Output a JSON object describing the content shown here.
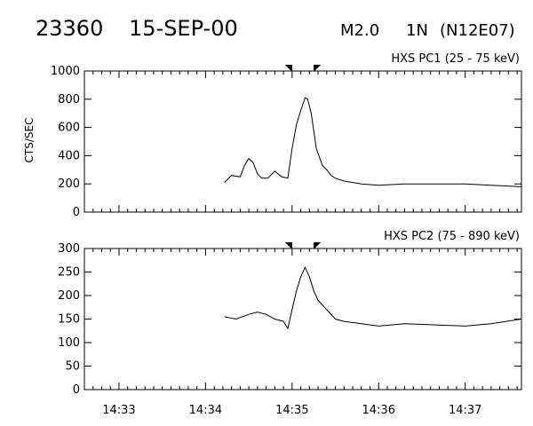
{
  "header": {
    "event_number": "23360",
    "date": "15-SEP-00",
    "goes_class": "M2.0",
    "optical_class": "1N",
    "location": "(N12E07)"
  },
  "chart_data": [
    {
      "type": "line",
      "title": "HXS PC1 (25 - 75 keV)",
      "ylabel": "CTS/SEC",
      "xlabel": "",
      "xlim": [
        "14:32.6",
        "14:37.65"
      ],
      "ylim": [
        0,
        1000
      ],
      "y_ticks": [
        0,
        200,
        400,
        600,
        800,
        1000
      ],
      "x_ticks": [
        "14:33",
        "14:34",
        "14:35",
        "14:36",
        "14:37"
      ],
      "grid": false,
      "markers_min": [
        34.98,
        35.27
      ],
      "x_min": [
        34.22,
        34.3,
        34.4,
        34.45,
        34.5,
        34.55,
        34.6,
        34.65,
        34.72,
        34.8,
        34.88,
        34.95,
        35.0,
        35.05,
        35.1,
        35.15,
        35.18,
        35.22,
        35.28,
        35.35,
        35.4,
        35.45,
        35.5,
        35.6,
        35.8,
        36.0,
        36.3,
        36.6,
        37.0,
        37.3,
        37.65
      ],
      "values": [
        210,
        260,
        250,
        330,
        380,
        350,
        270,
        240,
        240,
        290,
        250,
        240,
        450,
        620,
        720,
        810,
        800,
        700,
        450,
        330,
        300,
        260,
        240,
        220,
        200,
        190,
        200,
        200,
        200,
        190,
        180
      ],
      "values_note": ""
    },
    {
      "type": "line",
      "title": "HXS PC2 (75 - 890 keV)",
      "ylabel": "",
      "xlabel": "",
      "xlim": [
        "14:32.6",
        "14:37.65"
      ],
      "ylim": [
        0,
        300
      ],
      "y_ticks": [
        0,
        50,
        100,
        150,
        200,
        250,
        300
      ],
      "x_ticks": [
        "14:33",
        "14:34",
        "14:35",
        "14:36",
        "14:37"
      ],
      "grid": false,
      "markers_min": [
        34.98,
        35.27
      ],
      "x_min": [
        34.22,
        34.35,
        34.5,
        34.6,
        34.7,
        34.8,
        34.9,
        34.95,
        35.0,
        35.05,
        35.1,
        35.15,
        35.2,
        35.25,
        35.3,
        35.4,
        35.5,
        35.6,
        35.8,
        36.0,
        36.3,
        36.6,
        37.0,
        37.3,
        37.65
      ],
      "values": [
        155,
        150,
        160,
        165,
        160,
        150,
        145,
        130,
        170,
        210,
        240,
        260,
        240,
        210,
        190,
        170,
        150,
        145,
        140,
        135,
        140,
        138,
        135,
        140,
        150
      ]
    }
  ]
}
